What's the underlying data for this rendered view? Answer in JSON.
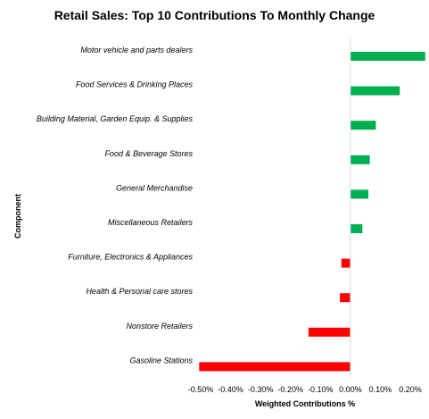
{
  "chart_data": {
    "type": "bar",
    "orientation": "horizontal",
    "title": "Retail Sales: Top 10 Contributions To Monthly Change",
    "xlabel": "Weighted Contributions %",
    "ylabel": "Component",
    "xlim": [
      -0.5,
      0.2
    ],
    "xticks": [
      -0.5,
      -0.4,
      -0.3,
      -0.2,
      -0.1,
      0.0,
      0.1,
      0.2
    ],
    "xtick_labels": [
      "-0.50%",
      "-0.40%",
      "-0.30%",
      "-0.20%",
      "-0.10%",
      "0.00%",
      "0.10%",
      "0.20%"
    ],
    "grid": false,
    "legend": "none",
    "categories": [
      "Motor vehicle and parts dealers",
      "Food Services & Drinking Places",
      "Building Material, Garden Equip. & Supplies",
      "Food & Beverage Stores",
      "General Merchandise",
      "Miscellaneous Retailers",
      "Furniture,  Electronics & Appliances",
      "Health & Personal care stores",
      "Nonstore Retailers",
      "Gasoline Stations"
    ],
    "values": [
      0.25,
      0.165,
      0.085,
      0.065,
      0.06,
      0.04,
      -0.03,
      -0.035,
      -0.14,
      -0.505
    ],
    "colors": {
      "positive": "#00b050",
      "negative": "#ff0000",
      "axis": "#d9d9d9"
    }
  }
}
